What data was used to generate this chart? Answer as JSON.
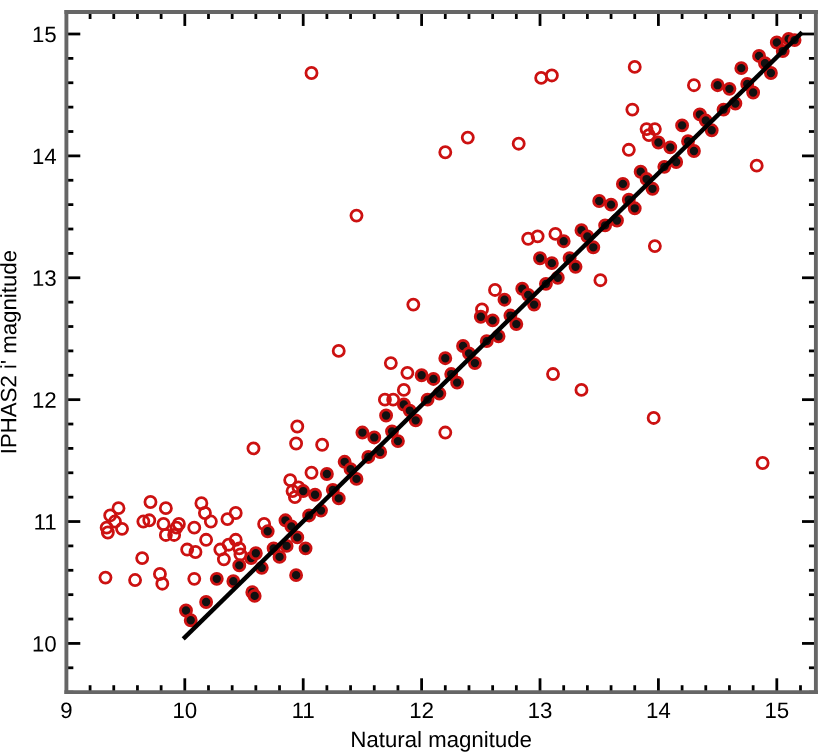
{
  "chart_data": {
    "type": "scatter",
    "xlabel": "Natural magnitude",
    "ylabel": "IPHAS2 i' magnitude",
    "xlim": [
      9,
      15.33
    ],
    "ylim": [
      9.6,
      15.18
    ],
    "xticks": [
      9,
      10,
      11,
      12,
      13,
      14,
      15
    ],
    "yticks": [
      10,
      11,
      12,
      13,
      14,
      15
    ],
    "grid": false,
    "legend": false,
    "marker": "circle",
    "series": [
      {
        "color": "#cc1111",
        "x": [
          11.07,
          12.2,
          11.45,
          11.93,
          11.3,
          13.01,
          13.1,
          13.8,
          14.3,
          13.78,
          13.9,
          13.97,
          13.92,
          13.75,
          12.39,
          12.82,
          14.83,
          12.9,
          12.98,
          13.13,
          13.97,
          13.51,
          12.62,
          12.51,
          13.11,
          13.35,
          13.96,
          14.88,
          11.74,
          11.88,
          11.69,
          11.76,
          11.85,
          10.95,
          10.94,
          11.16,
          10.58,
          11.07,
          10.89,
          10.96,
          10.91,
          10.93,
          12.2,
          9.71,
          9.44,
          9.37,
          9.41,
          9.34,
          9.35,
          9.47,
          9.65,
          9.7,
          9.84,
          9.82,
          9.84,
          9.91,
          9.93,
          9.95,
          10.08,
          10.14,
          10.17,
          10.22,
          10.36,
          10.43,
          10.18,
          10.02,
          10.09,
          10.3,
          10.37,
          10.43,
          10.46,
          10.33,
          10.47,
          9.64,
          9.33,
          9.58,
          9.79,
          9.81,
          10.08,
          10.67
        ],
        "values": [
          14.68,
          14.03,
          13.51,
          12.78,
          12.4,
          14.64,
          14.66,
          14.73,
          14.58,
          14.38,
          14.22,
          14.22,
          14.17,
          14.05,
          14.15,
          14.1,
          13.92,
          13.32,
          13.34,
          13.36,
          13.26,
          12.98,
          12.9,
          12.74,
          12.21,
          12.08,
          11.85,
          11.48,
          12.3,
          12.22,
          12.0,
          12.0,
          12.08,
          11.78,
          11.64,
          11.63,
          11.6,
          11.4,
          11.34,
          11.28,
          11.25,
          11.2,
          11.73,
          11.16,
          11.11,
          11.05,
          11.0,
          10.95,
          10.91,
          10.94,
          11.0,
          11.01,
          11.11,
          10.98,
          10.89,
          10.89,
          10.95,
          10.98,
          10.95,
          11.15,
          11.07,
          11.0,
          11.02,
          11.07,
          10.85,
          10.77,
          10.75,
          10.77,
          10.81,
          10.85,
          10.78,
          10.69,
          10.73,
          10.7,
          10.54,
          10.52,
          10.57,
          10.49,
          10.53,
          10.98
        ]
      },
      {
        "color": "#111111",
        "x": [
          10.01,
          10.05,
          10.18,
          10.27,
          10.41,
          10.57,
          10.59,
          10.94,
          11.02,
          10.86,
          10.46,
          10.56,
          10.6,
          10.65,
          10.7,
          10.75,
          10.8,
          10.85,
          10.9,
          10.95,
          11.0,
          11.05,
          11.1,
          11.15,
          11.2,
          11.25,
          11.3,
          11.35,
          11.4,
          11.45,
          11.5,
          11.55,
          11.6,
          11.65,
          11.7,
          11.75,
          11.8,
          11.85,
          11.9,
          11.95,
          12.0,
          12.05,
          12.1,
          12.15,
          12.2,
          12.25,
          12.3,
          12.35,
          12.4,
          12.45,
          12.5,
          12.55,
          12.6,
          12.65,
          12.7,
          12.75,
          12.8,
          12.85,
          12.9,
          12.95,
          13.0,
          13.05,
          13.1,
          13.15,
          13.2,
          13.25,
          13.3,
          13.35,
          13.4,
          13.45,
          13.5,
          13.55,
          13.6,
          13.65,
          13.7,
          13.75,
          13.8,
          13.85,
          13.9,
          13.95,
          14.0,
          14.05,
          14.1,
          14.15,
          14.2,
          14.25,
          14.3,
          14.35,
          14.4,
          14.45,
          14.5,
          14.55,
          14.6,
          14.65,
          14.7,
          14.75,
          14.8,
          14.85,
          14.9,
          14.95,
          15.0,
          15.05,
          15.1,
          15.15
        ],
        "values": [
          10.27,
          10.19,
          10.34,
          10.53,
          10.51,
          10.42,
          10.39,
          10.56,
          10.78,
          10.8,
          10.64,
          10.7,
          10.74,
          10.62,
          10.92,
          10.78,
          10.71,
          11.01,
          10.96,
          10.87,
          11.25,
          11.05,
          11.22,
          11.09,
          11.39,
          11.26,
          11.19,
          11.49,
          11.43,
          11.35,
          11.73,
          11.53,
          11.69,
          11.57,
          11.87,
          11.74,
          11.66,
          11.96,
          11.91,
          11.83,
          12.2,
          12.0,
          12.17,
          12.05,
          12.34,
          12.21,
          12.14,
          12.44,
          12.38,
          12.3,
          12.68,
          12.48,
          12.65,
          12.52,
          12.82,
          12.69,
          12.62,
          12.91,
          12.86,
          12.78,
          13.16,
          12.95,
          13.12,
          13.0,
          13.3,
          13.16,
          13.09,
          13.39,
          13.34,
          13.25,
          13.63,
          13.43,
          13.6,
          13.47,
          13.77,
          13.64,
          13.57,
          13.87,
          13.81,
          13.73,
          14.11,
          13.91,
          14.07,
          13.95,
          14.25,
          14.12,
          14.04,
          14.34,
          14.29,
          14.21,
          14.58,
          14.38,
          14.55,
          14.43,
          14.72,
          14.59,
          14.52,
          14.82,
          14.76,
          14.68,
          14.93,
          14.86,
          14.96,
          14.95
        ]
      },
      {
        "type": "line",
        "color": "#000000",
        "line_style": "solid",
        "marker": "none",
        "x": [
          10.0,
          15.2
        ],
        "values": [
          10.05,
          15.0
        ]
      }
    ]
  }
}
